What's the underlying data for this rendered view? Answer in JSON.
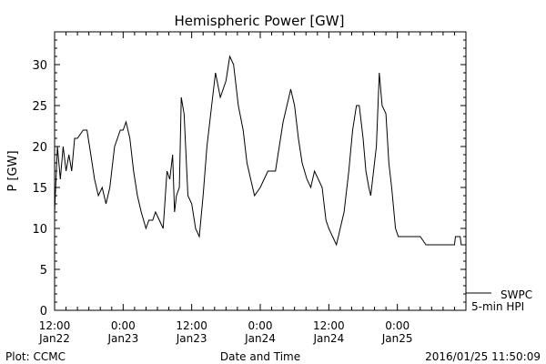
{
  "chart_data": {
    "type": "line",
    "title": "Hemispheric Power [GW]",
    "xlabel": "Date and Time",
    "ylabel": "P [GW]",
    "ylim": [
      0,
      34
    ],
    "y_ticks": [
      0,
      5,
      10,
      15,
      20,
      25,
      30
    ],
    "xlim": [
      "2016-01-22 12:00",
      "2016-01-25 12:00"
    ],
    "x_ticks": [
      {
        "x": "2016-01-22 12:00",
        "time": "12:00",
        "date": "Jan22"
      },
      {
        "x": "2016-01-23 00:00",
        "time": "0:00",
        "date": "Jan23"
      },
      {
        "x": "2016-01-23 12:00",
        "time": "12:00",
        "date": "Jan23"
      },
      {
        "x": "2016-01-24 00:00",
        "time": "0:00",
        "date": "Jan24"
      },
      {
        "x": "2016-01-24 12:00",
        "time": "12:00",
        "date": "Jan24"
      },
      {
        "x": "2016-01-25 00:00",
        "time": "0:00",
        "date": "Jan25"
      }
    ],
    "grid": false,
    "legend": [
      "SWPC",
      "5-min HPI"
    ],
    "series": [
      {
        "name": "SWPC",
        "x": [
          "2016-01-22 12:00",
          "2016-01-22 12:30",
          "2016-01-22 13:00",
          "2016-01-22 13:30",
          "2016-01-22 14:00",
          "2016-01-22 14:30",
          "2016-01-22 15:00",
          "2016-01-22 15:30",
          "2016-01-22 16:00",
          "2016-01-22 17:00",
          "2016-01-22 17:40",
          "2016-01-22 18:20",
          "2016-01-22 19:00",
          "2016-01-22 19:40",
          "2016-01-22 20:20",
          "2016-01-22 21:00",
          "2016-01-22 21:40",
          "2016-01-22 22:30",
          "2016-01-22 23:00",
          "2016-01-22 23:30",
          "2016-01-23 00:00",
          "2016-01-23 00:30",
          "2016-01-23 01:10",
          "2016-01-23 01:50",
          "2016-01-23 02:30",
          "2016-01-23 03:10",
          "2016-01-23 04:00",
          "2016-01-23 04:30",
          "2016-01-23 05:10",
          "2016-01-23 05:40",
          "2016-01-23 06:20",
          "2016-01-23 07:00",
          "2016-01-23 07:40",
          "2016-01-23 08:10",
          "2016-01-23 08:40",
          "2016-01-23 09:00",
          "2016-01-23 09:20",
          "2016-01-23 09:50",
          "2016-01-23 10:10",
          "2016-01-23 10:40",
          "2016-01-23 11:20",
          "2016-01-23 12:00",
          "2016-01-23 12:40",
          "2016-01-23 13:20",
          "2016-01-23 14:00",
          "2016-01-23 14:40",
          "2016-01-23 15:30",
          "2016-01-23 16:10",
          "2016-01-23 17:00",
          "2016-01-23 17:30",
          "2016-01-23 18:00",
          "2016-01-23 18:40",
          "2016-01-23 19:20",
          "2016-01-23 20:10",
          "2016-01-23 21:00",
          "2016-01-23 21:40",
          "2016-01-23 22:20",
          "2016-01-23 23:00",
          "2016-01-24 00:00",
          "2016-01-24 00:40",
          "2016-01-24 01:20",
          "2016-01-24 02:00",
          "2016-01-24 02:40",
          "2016-01-24 03:20",
          "2016-01-24 04:00",
          "2016-01-24 04:40",
          "2016-01-24 05:20",
          "2016-01-24 06:00",
          "2016-01-24 06:40",
          "2016-01-24 07:20",
          "2016-01-24 08:10",
          "2016-01-24 08:50",
          "2016-01-24 09:30",
          "2016-01-24 10:10",
          "2016-01-24 10:50",
          "2016-01-24 11:30",
          "2016-01-24 12:00",
          "2016-01-24 12:40",
          "2016-01-24 13:20",
          "2016-01-24 14:00",
          "2016-01-24 14:40",
          "2016-01-24 15:30",
          "2016-01-24 16:10",
          "2016-01-24 16:50",
          "2016-01-24 17:20",
          "2016-01-24 18:00",
          "2016-01-24 18:30",
          "2016-01-24 19:00",
          "2016-01-24 19:20",
          "2016-01-24 19:50",
          "2016-01-24 20:20",
          "2016-01-24 20:50",
          "2016-01-24 21:20",
          "2016-01-24 22:00",
          "2016-01-24 22:30",
          "2016-01-24 23:00",
          "2016-01-24 23:40",
          "2016-01-25 00:10",
          "2016-01-25 01:00",
          "2016-01-25 02:00",
          "2016-01-25 03:00",
          "2016-01-25 04:00",
          "2016-01-25 05:00",
          "2016-01-25 06:00",
          "2016-01-25 07:00",
          "2016-01-25 08:00",
          "2016-01-25 09:00",
          "2016-01-25 10:00",
          "2016-01-25 10:10",
          "2016-01-25 11:00",
          "2016-01-25 11:10",
          "2016-01-25 12:00"
        ],
        "y": [
          12,
          20,
          16,
          20,
          17,
          19,
          17,
          21,
          21,
          22,
          22,
          19,
          16,
          14,
          15,
          13,
          15,
          20,
          21,
          22,
          22,
          23,
          21,
          17,
          14,
          12,
          10,
          11,
          11,
          12,
          11,
          10,
          17,
          16,
          19,
          12,
          14,
          15,
          26,
          24,
          14,
          13,
          10,
          9,
          14,
          20,
          25,
          29,
          26,
          27,
          28,
          31,
          30,
          25,
          22,
          18,
          16,
          14,
          15,
          16,
          17,
          17,
          17,
          20,
          23,
          25,
          27,
          25,
          21,
          18,
          16,
          15,
          17,
          16,
          15,
          11,
          10,
          9,
          8,
          10,
          12,
          17,
          22,
          25,
          25,
          21,
          17,
          15,
          14,
          17,
          20,
          29,
          25,
          24,
          18,
          15,
          10,
          9,
          9,
          9,
          9,
          9,
          8,
          8,
          8,
          8,
          8,
          8,
          9,
          9,
          8,
          8
        ]
      }
    ],
    "footer": {
      "left": "Plot: CCMC",
      "right": "2016/01/25 11:50:09"
    }
  }
}
